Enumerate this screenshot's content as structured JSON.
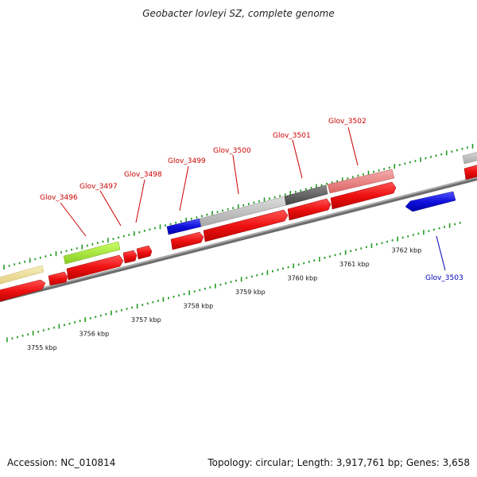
{
  "title": "Geobacter lovleyi SZ, complete genome",
  "footer": {
    "accession": "Accession: NC_010814",
    "summary": "Topology: circular; Length: 3,917,761 bp; Genes: 3,658"
  },
  "colors": {
    "gene_red": "#ee1111",
    "gene_blue": "#1111dd",
    "feature_yellow": "#eee09a",
    "feature_green": "#aaee33",
    "feature_gray": "#c0c0c0",
    "feature_dark": "#666666",
    "feature_pink": "#ee8080",
    "tick": "#229922",
    "backbone": "#888888",
    "label_red": "#cc0000",
    "label_blue": "#0000bb"
  },
  "chart_data": {
    "type": "genome-map",
    "scale_unit": "kbp",
    "scale_labels": [
      "3755 kbp",
      "3756 kbp",
      "3757 kbp",
      "3758 kbp",
      "3759 kbp",
      "3760 kbp",
      "3761 kbp",
      "3762 kbp"
    ],
    "scale_positions_kbp": [
      3755,
      3756,
      3757,
      3758,
      3759,
      3760,
      3761,
      3762
    ],
    "gene_labels": [
      {
        "name": "Glov_3496",
        "strand": "+",
        "start_kbp": 3756.15,
        "end_kbp": 3756.7
      },
      {
        "name": "Glov_3497",
        "strand": "+",
        "start_kbp": 3756.78,
        "end_kbp": 3757.0
      },
      {
        "name": "Glov_3498",
        "strand": "+",
        "start_kbp": 3757.05,
        "end_kbp": 3757.3
      },
      {
        "name": "Glov_3499",
        "strand": "+",
        "start_kbp": 3757.7,
        "end_kbp": 3758.3
      },
      {
        "name": "Glov_3500",
        "strand": "+",
        "start_kbp": 3758.35,
        "end_kbp": 3759.85
      },
      {
        "name": "Glov_3501",
        "strand": "+",
        "start_kbp": 3759.9,
        "end_kbp": 3760.7
      },
      {
        "name": "Glov_3502",
        "strand": "+",
        "start_kbp": 3760.75,
        "end_kbp": 3761.9
      },
      {
        "name": "Glov_3503",
        "strand": "-",
        "start_kbp": 3761.95,
        "end_kbp": 3762.8
      }
    ]
  }
}
